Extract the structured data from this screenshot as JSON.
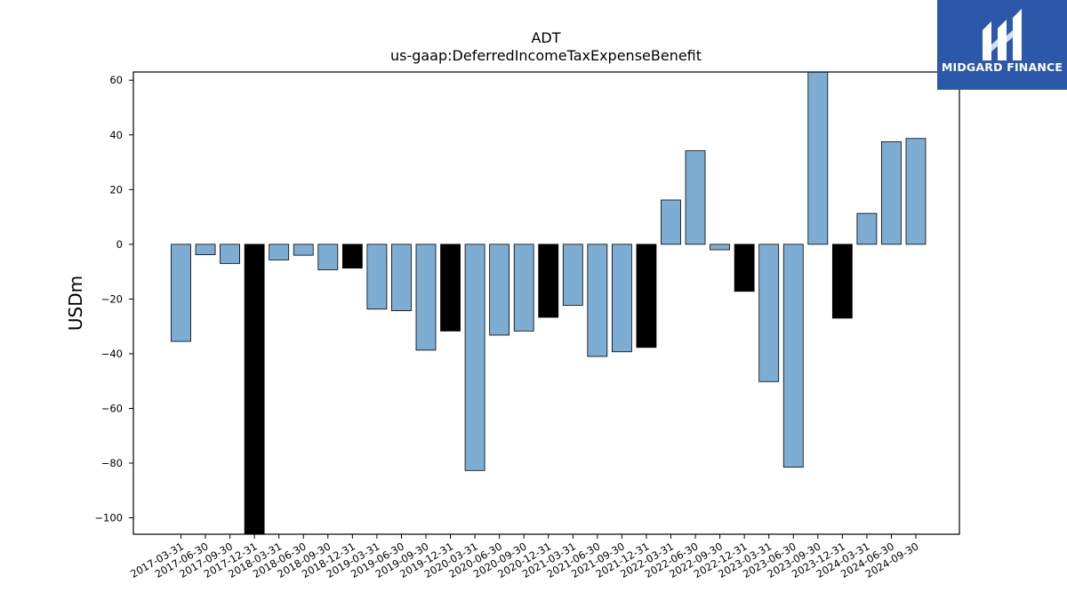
{
  "chart_data": {
    "type": "bar",
    "title": "ADT",
    "subtitle": "us-gaap:DeferredIncomeTaxExpenseBenefit",
    "xlabel": "",
    "ylabel": "USDm",
    "ylim": [
      -106,
      63
    ],
    "yticks": [
      60,
      40,
      20,
      0,
      -20,
      -40,
      -60,
      -80,
      -100
    ],
    "grid": false,
    "categories": [
      "2017-03-31",
      "2017-06-30",
      "2017-09-30",
      "2017-12-31",
      "2018-03-31",
      "2018-06-30",
      "2018-09-30",
      "2018-12-31",
      "2019-03-31",
      "2019-06-30",
      "2019-09-30",
      "2019-12-31",
      "2020-03-31",
      "2020-06-30",
      "2020-09-30",
      "2020-12-31",
      "2021-03-31",
      "2021-06-30",
      "2021-09-30",
      "2021-12-31",
      "2022-03-31",
      "2022-06-30",
      "2022-09-30",
      "2022-12-31",
      "2023-03-31",
      "2023-06-30",
      "2023-09-30",
      "2023-12-31",
      "2024-03-31",
      "2024-06-30",
      "2024-09-30"
    ],
    "values": [
      -35.5,
      -3.8,
      -7,
      -106,
      -5.7,
      -4,
      -9.3,
      -8.7,
      -23.7,
      -24.3,
      -38.7,
      -31.7,
      -82.7,
      -33.2,
      -31.7,
      -26.7,
      -22.3,
      -41,
      -39.3,
      -37.7,
      16.2,
      34.2,
      -2,
      -17.2,
      -50.2,
      -81.5,
      63,
      -27,
      11.3,
      37.5,
      38.7
    ],
    "fourth_quarter_bars": [
      3,
      7,
      11,
      15,
      19,
      23,
      27
    ],
    "colors": {
      "bar": "#7eadd4",
      "fourth_quarter_bar": "#000000",
      "edge": "#000000"
    }
  },
  "logo": {
    "name": "MIDGARD FINANCE",
    "color": "#2b58a8"
  }
}
